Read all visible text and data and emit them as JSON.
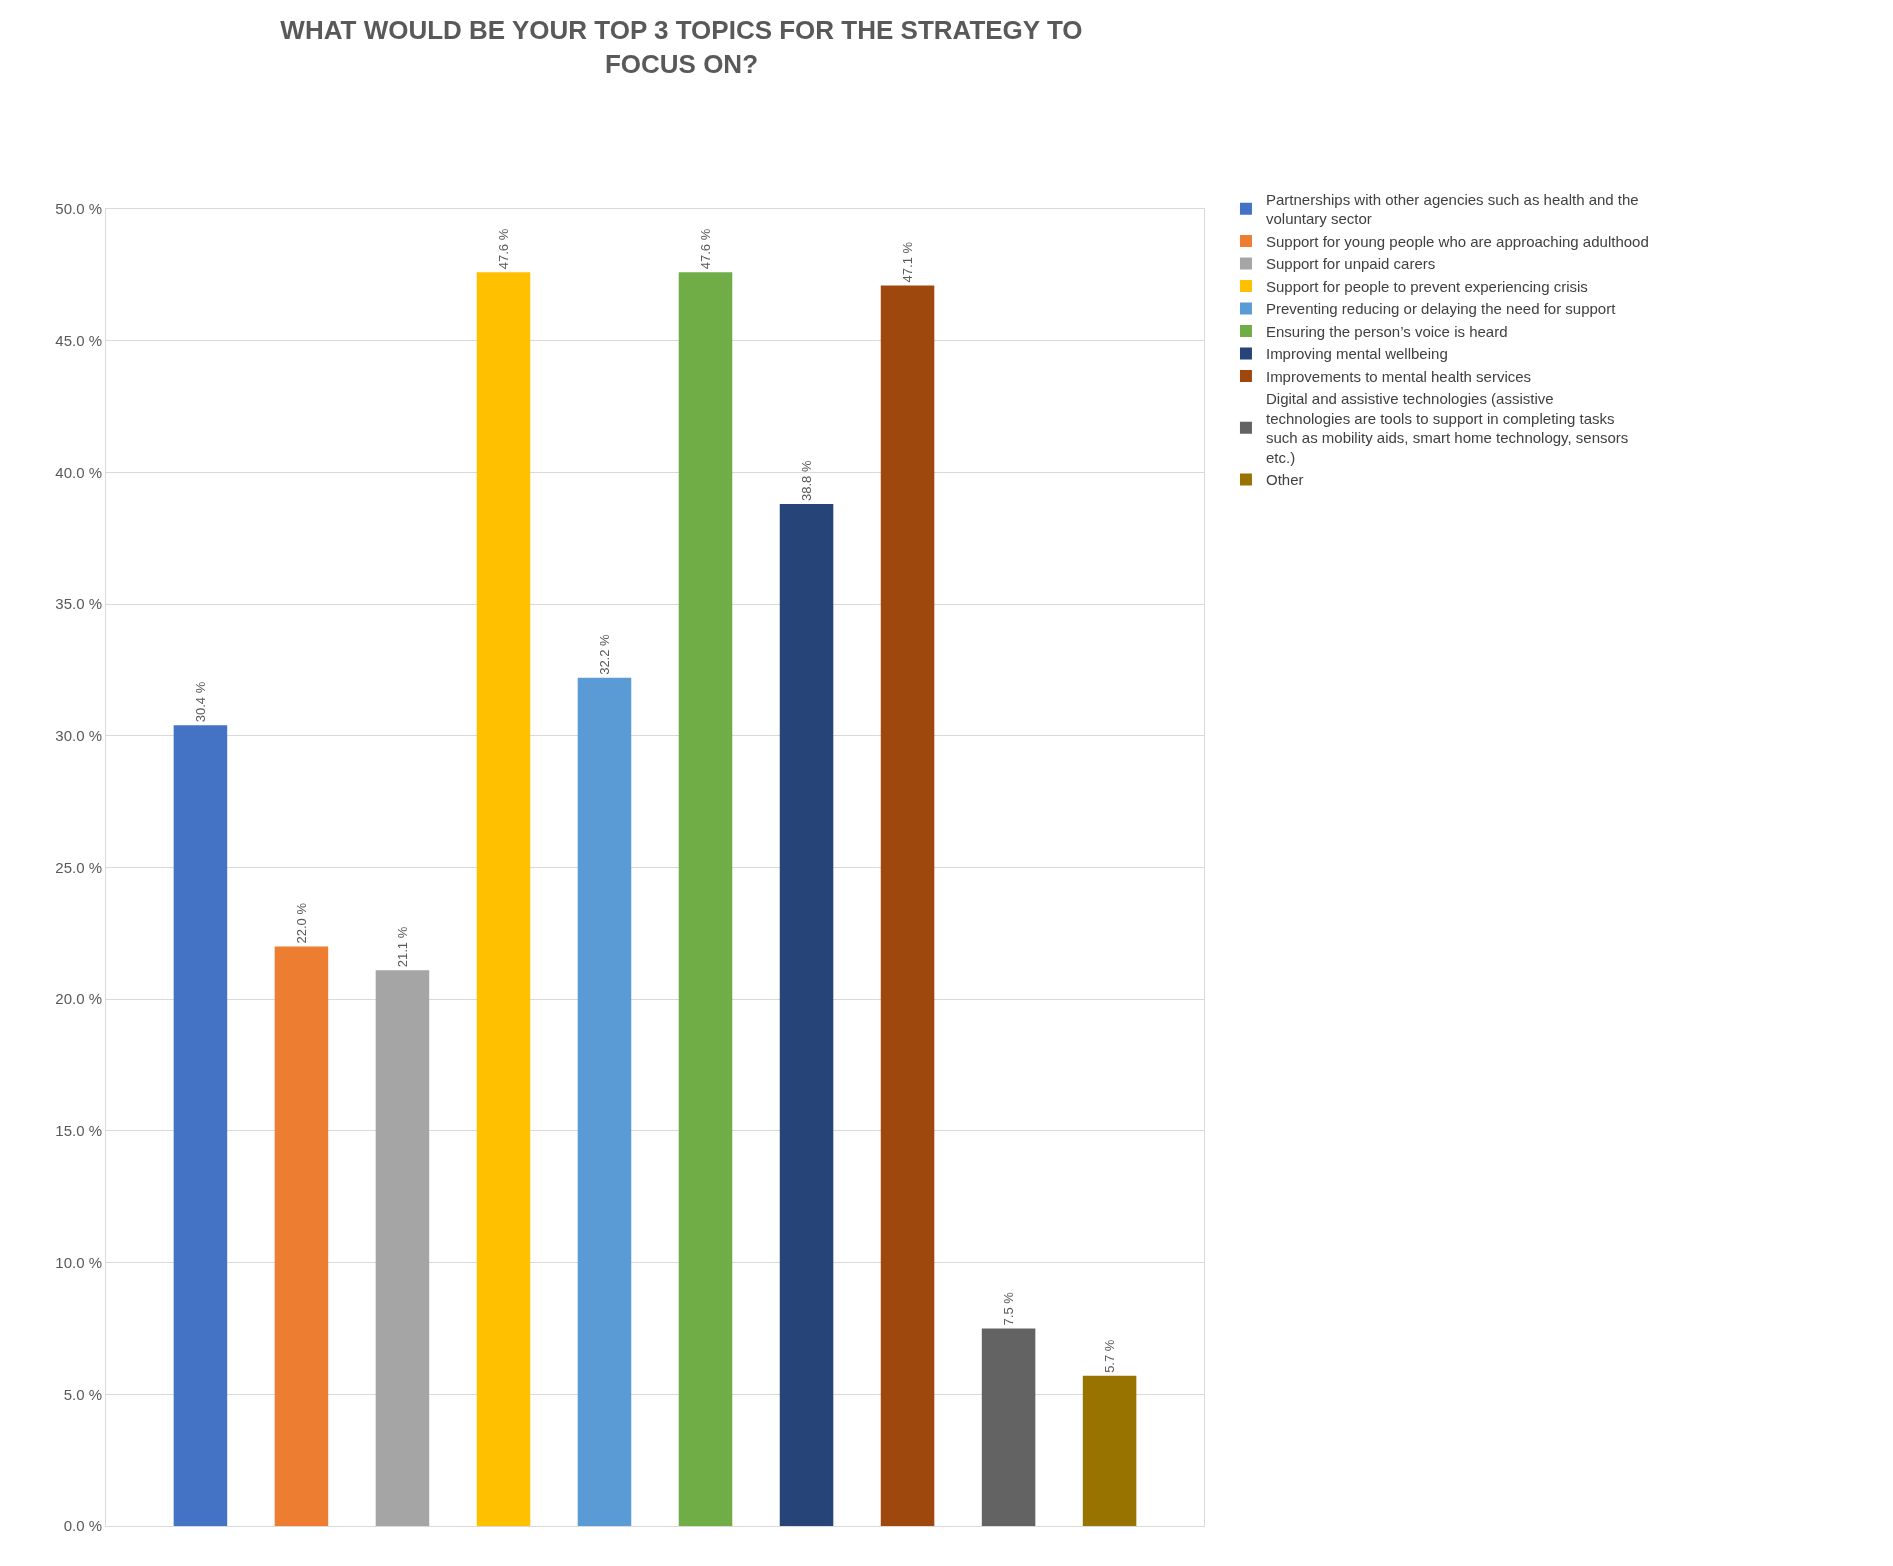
{
  "chart_data": {
    "type": "bar",
    "title": "WHAT WOULD BE YOUR TOP 3 TOPICS FOR THE STRATEGY TO FOCUS ON?",
    "categories": [
      null
    ],
    "series": [
      {
        "name": "Partnerships with other agencies such as health and the voluntary sector",
        "color": "#4472c4",
        "values": [
          30.4
        ],
        "value_labels": [
          "30.4 %"
        ]
      },
      {
        "name": "Support for young people who are approaching adulthood",
        "color": "#ed7d31",
        "values": [
          22.0
        ],
        "value_labels": [
          "22.0 %"
        ]
      },
      {
        "name": "Support for unpaid carers",
        "color": "#a5a5a5",
        "values": [
          21.1
        ],
        "value_labels": [
          "21.1 %"
        ]
      },
      {
        "name": "Support for people to prevent experiencing crisis",
        "color": "#ffc000",
        "values": [
          47.6
        ],
        "value_labels": [
          "47.6 %"
        ]
      },
      {
        "name": "Preventing reducing or delaying the need for support",
        "color": "#5b9bd5",
        "values": [
          32.2
        ],
        "value_labels": [
          "32.2 %"
        ]
      },
      {
        "name": "Ensuring the person’s voice is heard",
        "color": "#70ad47",
        "values": [
          47.6
        ],
        "value_labels": [
          "47.6 %"
        ]
      },
      {
        "name": "Improving mental wellbeing",
        "color": "#264478",
        "values": [
          38.8
        ],
        "value_labels": [
          "38.8 %"
        ]
      },
      {
        "name": "Improvements to mental health services",
        "color": "#9e480e",
        "values": [
          47.1
        ],
        "value_labels": [
          "47.1 %"
        ]
      },
      {
        "name": "Digital and assistive technologies (assistive technologies are tools to support in completing tasks such as mobility aids, smart home technology, sensors etc.)",
        "color": "#636363",
        "values": [
          7.5
        ],
        "value_labels": [
          "7.5 %"
        ]
      },
      {
        "name": "Other",
        "color": "#997300",
        "values": [
          5.7
        ],
        "value_labels": [
          "5.7 %"
        ]
      }
    ],
    "ylim": [
      0,
      50
    ],
    "yticks": [
      {
        "value": 0,
        "label": "0.0 %"
      },
      {
        "value": 5,
        "label": "5.0 %"
      },
      {
        "value": 10,
        "label": "10.0 %"
      },
      {
        "value": 15,
        "label": "15.0 %"
      },
      {
        "value": 20,
        "label": "20.0 %"
      },
      {
        "value": 25,
        "label": "25.0 %"
      },
      {
        "value": 30,
        "label": "30.0 %"
      },
      {
        "value": 35,
        "label": "35.0 %"
      },
      {
        "value": 40,
        "label": "40.0 %"
      },
      {
        "value": 45,
        "label": "45.0 %"
      },
      {
        "value": 50,
        "label": "50.0 %"
      }
    ],
    "grid": "y",
    "legend": "right"
  }
}
